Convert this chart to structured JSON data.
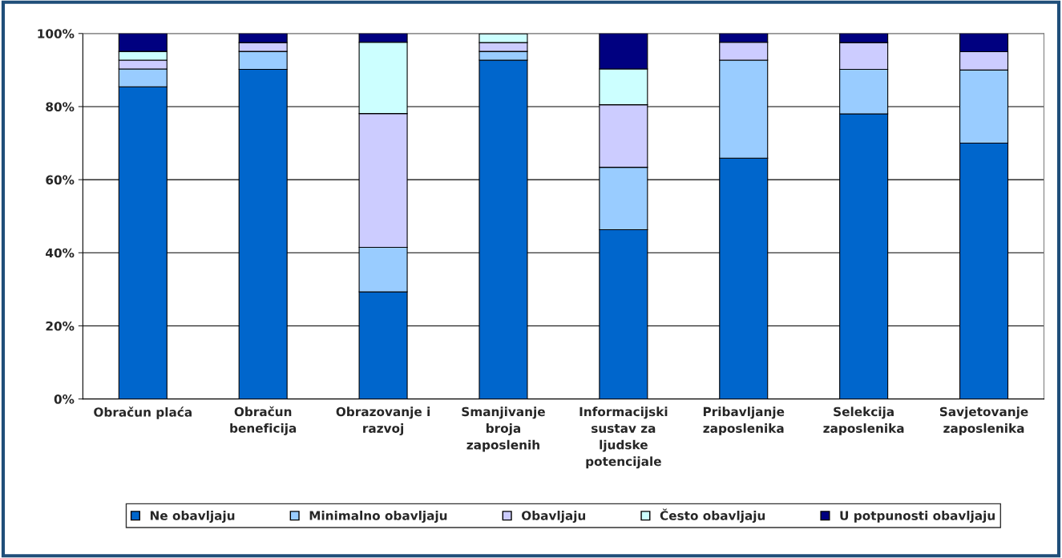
{
  "chart_data": {
    "type": "bar",
    "stacked": true,
    "categories": [
      "Obračun plaća",
      "Obračun beneficija",
      "Obrazovanje i razvoj",
      "Smanjivanje broja zaposlenih",
      "Informacijski sustav za ljudske potencijale",
      "Pribavljanje zaposlenika",
      "Selekcija zaposlenika",
      "Savjetovanje zaposlenika"
    ],
    "series": [
      {
        "name": "Ne obavljaju",
        "color": "#0066cc",
        "values": [
          85.4,
          90.2,
          29.3,
          92.7,
          46.3,
          65.9,
          78.0,
          70.0
        ]
      },
      {
        "name": "Minimalno obavljaju",
        "color": "#99ccff",
        "values": [
          4.9,
          4.9,
          12.2,
          2.4,
          17.1,
          26.8,
          12.2,
          20.0
        ]
      },
      {
        "name": "Obavljaju",
        "color": "#ccccff",
        "values": [
          2.4,
          2.4,
          36.6,
          2.4,
          17.1,
          4.9,
          7.3,
          5.0
        ]
      },
      {
        "name": "Često obavljaju",
        "color": "#ccffff",
        "values": [
          2.4,
          null,
          19.5,
          2.4,
          9.8,
          null,
          null,
          null
        ]
      },
      {
        "name": "U potpunosti obavljaju",
        "color": "#000080",
        "values": [
          4.9,
          2.5,
          2.4,
          null,
          9.7,
          2.4,
          2.5,
          5.0
        ]
      }
    ],
    "ylim": [
      0,
      100
    ],
    "yticks": [
      {
        "value": 0,
        "label": "0%"
      },
      {
        "value": 20,
        "label": "20%"
      },
      {
        "value": 40,
        "label": "40%"
      },
      {
        "value": 60,
        "label": "60%"
      },
      {
        "value": 80,
        "label": "80%"
      },
      {
        "value": 100,
        "label": "100%"
      }
    ],
    "grid": "y",
    "legend": "bottom"
  }
}
